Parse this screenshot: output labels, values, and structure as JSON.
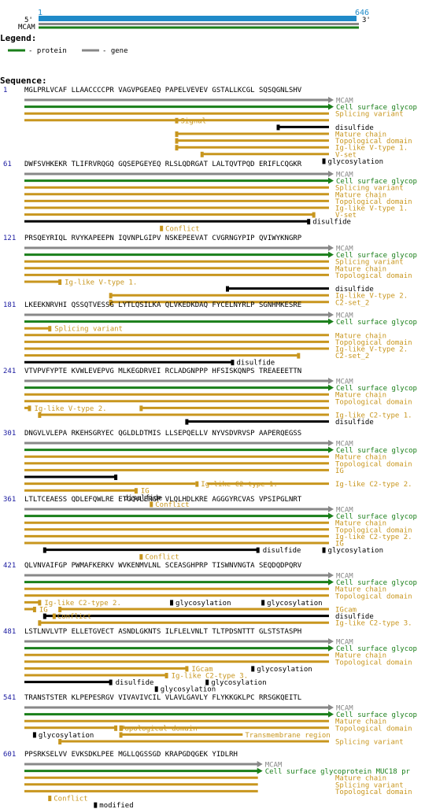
{
  "overview": {
    "start": "1",
    "end": "646",
    "five_prime": "5'",
    "three_prime": "3'",
    "gene_label": "MCAM"
  },
  "legend": {
    "title": "Legend:",
    "protein_label": "- protein",
    "gene_label": "- gene"
  },
  "sequence_title": "Sequence:",
  "colors": {
    "protein": "#1a7f1a",
    "gene": "#888888",
    "feature": "#c8961e",
    "bond": "#000000",
    "number": "#1a1aa0",
    "overview_bar": "#1f8ac8"
  },
  "blocks": [
    {
      "num": "1",
      "seq": "MGLPRLVCAF LLAACCCCPR VAGVPGEAEQ PAPELVEVEV GSTALLKCGL SQSQGNLSHV",
      "tracks": [
        {
          "kind": "gene",
          "from": 0,
          "to": 60,
          "label": "MCAM"
        },
        {
          "kind": "protein",
          "from": 0,
          "to": 60,
          "label": "Cell surface glycop"
        },
        {
          "kind": "feature",
          "from": 0,
          "to": 60,
          "label": "Splicing variant"
        },
        {
          "kind": "feature",
          "from": 0,
          "to": 30,
          "mid": "Signal",
          "midat": 30,
          "mark": "start"
        },
        {
          "kind": "bond",
          "from": 50,
          "to": 60,
          "label": "disulfide",
          "mark": "start"
        },
        {
          "kind": "feature",
          "from": 30,
          "to": 60,
          "label": "Mature chain",
          "mark": "start"
        },
        {
          "kind": "feature",
          "from": 30,
          "to": 60,
          "label": "Topological domain",
          "mark": "start"
        },
        {
          "kind": "feature",
          "from": 30,
          "to": 60,
          "label": "Ig-like V-type 1.",
          "mark": "start"
        },
        {
          "kind": "feature",
          "from": 35,
          "to": 60,
          "label": "V-set",
          "mark": "start"
        },
        {
          "kind": "dot",
          "at": 59,
          "label": "glycosylation"
        }
      ]
    },
    {
      "num": "61",
      "seq": "DWFSVHKEKR TLIFRVRQGQ GQSEPGEYEQ RLSLQDRGAT LALTQVTPQD ERIFLCQGKR",
      "tracks": [
        {
          "kind": "gene",
          "from": 0,
          "to": 60,
          "label": "MCAM"
        },
        {
          "kind": "protein",
          "from": 0,
          "to": 60,
          "label": "Cell surface glycop"
        },
        {
          "kind": "feature",
          "from": 0,
          "to": 60,
          "label": "Splicing variant"
        },
        {
          "kind": "feature",
          "from": 0,
          "to": 60,
          "label": "Mature chain"
        },
        {
          "kind": "feature",
          "from": 0,
          "to": 60,
          "label": "Topological domain"
        },
        {
          "kind": "feature",
          "from": 0,
          "to": 60,
          "label": "Ig-like V-type 1."
        },
        {
          "kind": "feature",
          "from": 0,
          "to": 57,
          "label": "V-set",
          "mark": "end"
        },
        {
          "kind": "bond",
          "from": 0,
          "to": 56,
          "label": "disulfide",
          "mark": "end"
        },
        {
          "kind": "dot",
          "at": 27,
          "label": "Conflict",
          "color": "feature",
          "right": true
        }
      ]
    },
    {
      "num": "121",
      "seq": "PRSQEYRIQL RVYKAPEEPN IQVNPLGIPV NSKEPEEVAT CVGRNGYPIP QVIWYKNGRP",
      "tracks": [
        {
          "kind": "gene",
          "from": 0,
          "to": 60,
          "label": "MCAM"
        },
        {
          "kind": "protein",
          "from": 0,
          "to": 60,
          "label": "Cell surface glycop"
        },
        {
          "kind": "feature",
          "from": 0,
          "to": 60,
          "label": "Splicing variant"
        },
        {
          "kind": "feature",
          "from": 0,
          "to": 60,
          "label": "Mature chain"
        },
        {
          "kind": "feature",
          "from": 0,
          "to": 60,
          "label": "Topological domain"
        },
        {
          "kind": "feature",
          "from": 0,
          "to": 7,
          "after": "Ig-like V-type 1.",
          "mark": "end"
        },
        {
          "kind": "bond",
          "from": 40,
          "to": 60,
          "label": "disulfide",
          "mark": "start"
        },
        {
          "kind": "feature",
          "from": 17,
          "to": 60,
          "label": "Ig-like V-type 2.",
          "mark": "start"
        },
        {
          "kind": "feature",
          "from": 17,
          "to": 60,
          "label": "C2-set_2",
          "mark": "start"
        }
      ]
    },
    {
      "num": "181",
      "seq": "LKEEKNRVHI QSSQTVESSG LYTLQSILKA QLVKEDKDAQ FYCELNYRLP SGNHMKESRE",
      "tracks": [
        {
          "kind": "gene",
          "from": 0,
          "to": 60,
          "label": "MCAM"
        },
        {
          "kind": "protein",
          "from": 0,
          "to": 60,
          "label": "Cell surface glycop"
        },
        {
          "kind": "feature",
          "from": 0,
          "to": 5,
          "after": "Splicing variant",
          "mark": "end"
        },
        {
          "kind": "feature",
          "from": 0,
          "to": 60,
          "label": "Mature chain"
        },
        {
          "kind": "feature",
          "from": 0,
          "to": 60,
          "label": "Topological domain"
        },
        {
          "kind": "feature",
          "from": 0,
          "to": 60,
          "label": "Ig-like V-type 2."
        },
        {
          "kind": "feature",
          "from": 0,
          "to": 54,
          "label": "C2-set_2",
          "mark": "end"
        },
        {
          "kind": "bond",
          "from": 0,
          "to": 41,
          "label": "disulfide",
          "mark": "end"
        }
      ]
    },
    {
      "num": "241",
      "seq": "VTVPVFYPTE KVWLEVEPVG MLKEGDRVEI RCLADGNPPP HFSISKQNPS TREAEEETTN",
      "tracks": [
        {
          "kind": "gene",
          "from": 0,
          "to": 60,
          "label": "MCAM"
        },
        {
          "kind": "protein",
          "from": 0,
          "to": 60,
          "label": "Cell surface glycop"
        },
        {
          "kind": "feature",
          "from": 0,
          "to": 60,
          "label": "Mature chain"
        },
        {
          "kind": "feature",
          "from": 0,
          "to": 60,
          "label": "Topological domain"
        },
        {
          "kind": "feature",
          "from": 0,
          "to": 1,
          "after": "Ig-like V-type 2.",
          "mark": "end",
          "split": 23
        },
        {
          "kind": "feature",
          "from": 3,
          "to": 60,
          "label": "Ig-like C2-type 1.",
          "mark": "start"
        },
        {
          "kind": "bond",
          "from": 32,
          "to": 60,
          "label": "disulfide",
          "mark": "start"
        }
      ]
    },
    {
      "num": "301",
      "seq": "DNGVLVLEPA RKEHSGRYEC QGLDLDTMIS LLSEPQELLV NYVSDVRVSP AAPERQEGSS",
      "tracks": [
        {
          "kind": "gene",
          "from": 0,
          "to": 60,
          "label": "MCAM"
        },
        {
          "kind": "protein",
          "from": 0,
          "to": 60,
          "label": "Cell surface glycop"
        },
        {
          "kind": "feature",
          "from": 0,
          "to": 60,
          "label": "Mature chain"
        },
        {
          "kind": "feature",
          "from": 0,
          "to": 60,
          "label": "Topological domain"
        },
        {
          "kind": "feature",
          "from": 0,
          "to": 60,
          "label": "IG"
        },
        {
          "kind": "bond",
          "from": 0,
          "to": 18,
          "label": "",
          "mark": "end"
        },
        {
          "kind": "feature",
          "from": 0,
          "to": 22,
          "mid": "Ig-like C2-type 1.",
          "midat": 34,
          "gapto": 36,
          "label": "Ig-like C2-type 2.",
          "mark": "end"
        },
        {
          "kind": "feature",
          "from": 0,
          "to": 22,
          "after": "IG",
          "mark": "end"
        },
        {
          "kind": "bond",
          "from": 18,
          "to": 19,
          "label": "disulfide",
          "mark": "end",
          "textonly": true
        },
        {
          "kind": "dot",
          "at": 25,
          "label": "Conflict",
          "color": "feature",
          "right": true
        }
      ]
    },
    {
      "num": "361",
      "seq": "LTLTCEAESS QDLEFQWLRE ETGQVLERGP VLQLHDLKRE AGGGYRCVAS VPSIPGLNRT",
      "tracks": [
        {
          "kind": "gene",
          "from": 0,
          "to": 60,
          "label": "MCAM"
        },
        {
          "kind": "protein",
          "from": 0,
          "to": 60,
          "label": "Cell surface glycop"
        },
        {
          "kind": "feature",
          "from": 0,
          "to": 60,
          "label": "Mature chain"
        },
        {
          "kind": "feature",
          "from": 0,
          "to": 60,
          "label": "Topological domain"
        },
        {
          "kind": "feature",
          "from": 0,
          "to": 60,
          "label": "Ig-like C2-type 2."
        },
        {
          "kind": "feature",
          "from": 0,
          "to": 60,
          "label": "IG"
        },
        {
          "kind": "bond",
          "from": 4,
          "to": 46,
          "after": "disulfide",
          "mark": "both",
          "dot": 59,
          "dotlabel": "glycosylation"
        },
        {
          "kind": "dot",
          "at": 23,
          "label": "Conflict",
          "color": "feature",
          "right": true
        }
      ]
    },
    {
      "num": "421",
      "seq": "QLVNVAIFGP PWMAFKERKV WVKENMVLNL SCEASGHPRP TISWNVNGTA SEQDQDPQRV",
      "tracks": [
        {
          "kind": "gene",
          "from": 0,
          "to": 60,
          "label": "MCAM"
        },
        {
          "kind": "protein",
          "from": 0,
          "to": 60,
          "label": "Cell surface glycop"
        },
        {
          "kind": "feature",
          "from": 0,
          "to": 60,
          "label": "Mature chain"
        },
        {
          "kind": "feature",
          "from": 0,
          "to": 60,
          "label": "Topological domain"
        },
        {
          "kind": "feature",
          "from": 0,
          "to": 3,
          "after": "Ig-like C2-type 2.",
          "mark": "end",
          "dots": [
            {
              "at": 29,
              "label": "glycosylation"
            },
            {
              "at": 47,
              "label": "glycosylation"
            }
          ]
        },
        {
          "kind": "feature",
          "from": 0,
          "to": 2,
          "after": "IG",
          "mark": "end",
          "split": 7,
          "label": "IGcam"
        },
        {
          "kind": "bond",
          "from": 4,
          "to": 60,
          "label": "disulfide",
          "mark": "start",
          "pre": "Conflict"
        },
        {
          "kind": "feature",
          "from": 3,
          "to": 60,
          "label": "Ig-like C2-type 3.",
          "mark": "start"
        }
      ]
    },
    {
      "num": "481",
      "seq": "LSTLNVLVTP ELLETGVECT ASNDLGKNTS ILFLELVNLT TLTPDSNTTT GLSTSTASPH",
      "tracks": [
        {
          "kind": "gene",
          "from": 0,
          "to": 60,
          "label": "MCAM"
        },
        {
          "kind": "protein",
          "from": 0,
          "to": 60,
          "label": "Cell surface glycop"
        },
        {
          "kind": "feature",
          "from": 0,
          "to": 60,
          "label": "Mature chain"
        },
        {
          "kind": "feature",
          "from": 0,
          "to": 60,
          "label": "Topological domain"
        },
        {
          "kind": "feature",
          "from": 0,
          "to": 32,
          "after": "IGcam",
          "mark": "end",
          "dots": [
            {
              "at": 45,
              "label": "glycosylation"
            }
          ]
        },
        {
          "kind": "feature",
          "from": 0,
          "to": 28,
          "after": "Ig-like C2-type 3.",
          "mark": "end"
        },
        {
          "kind": "bond",
          "from": 0,
          "to": 17,
          "after": "disulfide",
          "mark": "end",
          "dot": 36,
          "dotlabel": "glycosylation"
        },
        {
          "kind": "dot",
          "at": 26,
          "label": "glycosylation"
        }
      ]
    },
    {
      "num": "541",
      "seq": "TRANSTSTER KLPEPESRGV VIVAVIVCIL VLAVLGAVLY FLYKKGKLPC RRSGKQEITL",
      "tracks": [
        {
          "kind": "gene",
          "from": 0,
          "to": 60,
          "label": "MCAM"
        },
        {
          "kind": "protein",
          "from": 0,
          "to": 60,
          "label": "Cell surface glycop"
        },
        {
          "kind": "feature",
          "from": 0,
          "to": 60,
          "label": "Mature chain"
        },
        {
          "kind": "feature",
          "from": 0,
          "to": 18,
          "after": "Topological domain",
          "mark": "end",
          "split": 19,
          "label": "Topological domain"
        },
        {
          "kind": "dot",
          "at": 2,
          "label": "glycosylation",
          "after2": true,
          "bar": [
            19,
            43
          ],
          "barlabel": "Transmembrane region"
        },
        {
          "kind": "feature",
          "from": 7,
          "to": 60,
          "label": "Splicing variant",
          "mark": "start"
        }
      ]
    },
    {
      "num": "601",
      "seq": "PPSRKSELVV EVKSDKLPEE MGLLQGSSGD KRAPGDQGEK YIDLRH",
      "tracks": [
        {
          "kind": "gene",
          "from": 0,
          "to": 46,
          "label": "MCAM"
        },
        {
          "kind": "protein",
          "from": 0,
          "to": 46,
          "label": "Cell surface glycoprotein MUC18 pr"
        },
        {
          "kind": "feature",
          "from": 0,
          "to": 46,
          "label": "Mature chain"
        },
        {
          "kind": "feature",
          "from": 0,
          "to": 46,
          "label": "Splicing variant"
        },
        {
          "kind": "feature",
          "from": 0,
          "to": 46,
          "label": "Topological domain"
        },
        {
          "kind": "dot",
          "at": 5,
          "label": "Conflict",
          "color": "feature",
          "right": true
        },
        {
          "kind": "dot",
          "at": 14,
          "label": "modified"
        }
      ]
    }
  ]
}
